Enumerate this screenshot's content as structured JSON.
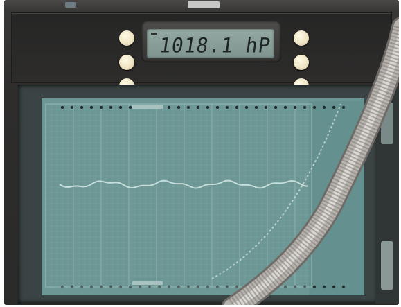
{
  "display": {
    "reading": "1018.1 hP"
  },
  "colors": {
    "paper": "#6c9795",
    "grid": "#5b8886",
    "trace": "#bfd8d5",
    "lcd": "#8aa09b",
    "button": "#efe4c4"
  },
  "icons": {
    "buttons": "round-cream-button",
    "hose": "flexible-metal-conduit"
  }
}
